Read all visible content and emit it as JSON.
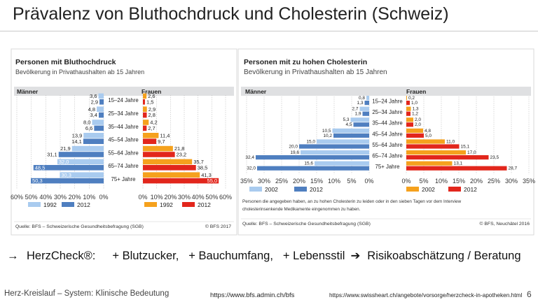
{
  "slide": {
    "title": "Prävalenz von Bluthochdruck und Cholesterin (Schweiz)",
    "page_number": "6"
  },
  "summary": {
    "arrow1": "→",
    "brand": "HerzCheck®:",
    "items": [
      "+ Blutzucker,",
      "+ Bauchumfang,",
      "+ Lebensstil"
    ],
    "arrow2": "➔",
    "result": "Risikoabschätzung / Beratung"
  },
  "footer": {
    "left": "Herz-Kreislauf – System:  Klinische Bedeutung",
    "source_url_1": "https://www.bfs.admin.ch/bfs",
    "source_url_2": "https://www.swissheart.ch/angebote/vorsorge/herzcheck-in-apotheken.html"
  },
  "colors": {
    "maenner_light": "#a9cbef",
    "maenner_dark": "#4f7fc0",
    "frauen_light": "#f5a11d",
    "frauen_dark": "#e2261c",
    "header_band": "#dfe0e2",
    "grid": "#bfbfbf"
  },
  "chart_data": [
    {
      "type": "bar",
      "orientation": "horizontal",
      "title": "Personen mit Bluthochdruck",
      "subtitle": "Bevölkerung in Privathaushalten ab 15 Jahren",
      "panels": [
        "Männer",
        "Frauen"
      ],
      "categories": [
        "15–24 Jahre",
        "25–34 Jahre",
        "35–44 Jahre",
        "45–54 Jahre",
        "55–64 Jahre",
        "65–74 Jahre",
        "75+ Jahre"
      ],
      "series": [
        {
          "panel": "Männer",
          "name": "1992",
          "values": [
            3.6,
            4.8,
            8.0,
            13.9,
            21.9,
            32.0,
            30.3
          ]
        },
        {
          "panel": "Männer",
          "name": "2012",
          "values": [
            2.9,
            3.4,
            6.6,
            14.1,
            31.1,
            48.5,
            50.3
          ]
        },
        {
          "panel": "Frauen",
          "name": "1992",
          "values": [
            2.6,
            2.9,
            4.2,
            11.4,
            21.8,
            35.7,
            41.3
          ]
        },
        {
          "panel": "Frauen",
          "name": "2012",
          "values": [
            1.5,
            2.8,
            2.7,
            9.7,
            23.2,
            38.5,
            55.0
          ]
        }
      ],
      "value_labels": {
        "Männer_1992": [
          "3,6",
          "4,8",
          "8,0",
          "13,9",
          "21,9",
          "32,0",
          "30,3"
        ],
        "Männer_2012": [
          "2,9",
          "3,4",
          "6,6",
          "14,1",
          "31,1",
          "48,5",
          "50,3"
        ],
        "Frauen_1992": [
          "2,6",
          "2,9",
          "4,2",
          "11,4",
          "21,8",
          "35,7",
          "41,3"
        ],
        "Frauen_2012": [
          "1,5",
          "2,8",
          "2,7",
          "9,7",
          "23,2",
          "38,5",
          "55,0"
        ]
      },
      "xlim": [
        0,
        60
      ],
      "x_ticks_left": [
        "60%",
        "50%",
        "40%",
        "30%",
        "20%",
        "10%",
        "0%"
      ],
      "x_ticks_right": [
        "0%",
        "10%",
        "20%",
        "30%",
        "40%",
        "50%",
        "60%"
      ],
      "legend": [
        "1992",
        "2012"
      ],
      "source": "Quelle: BFS – Schweizerische Gesundheitsbefragung (SGB)",
      "credit": "© BFS 2017"
    },
    {
      "type": "bar",
      "orientation": "horizontal",
      "title": "Personen mit zu hohen Cholesterin",
      "subtitle": "Bevölkerung in Privathaushalten ab 15 Jahren",
      "panels": [
        "Männer",
        "Frauen"
      ],
      "categories": [
        "15–24 Jahre",
        "25–34 Jahre",
        "35–44 Jahre",
        "45–54 Jahre",
        "55–64 Jahre",
        "65–74 Jahre",
        "75+ Jahre"
      ],
      "series": [
        {
          "panel": "Männer",
          "name": "2002",
          "values": [
            0.8,
            2.7,
            5.3,
            10.5,
            15.0,
            19.6,
            15.6
          ]
        },
        {
          "panel": "Männer",
          "name": "2012",
          "values": [
            1.3,
            1.9,
            4.5,
            10.2,
            20.0,
            32.4,
            32.0
          ]
        },
        {
          "panel": "Frauen",
          "name": "2002",
          "values": [
            0.2,
            1.3,
            2.0,
            4.8,
            11.0,
            17.0,
            13.1
          ]
        },
        {
          "panel": "Frauen",
          "name": "2012",
          "values": [
            1.0,
            1.2,
            2.0,
            5.0,
            15.1,
            23.5,
            28.7
          ]
        }
      ],
      "value_labels": {
        "Männer_2002": [
          "0,8",
          "2,7",
          "5,3",
          "10,5",
          "15,0",
          "19,6",
          "15,6"
        ],
        "Männer_2012": [
          "1,3",
          "1,9",
          "4,5",
          "10,2",
          "20,0",
          "32,4",
          "32,0"
        ],
        "Frauen_2002": [
          "0,2",
          "1,3",
          "2,0",
          "4,8",
          "11,0",
          "17,0",
          "13,1"
        ],
        "Frauen_2012": [
          "1,0",
          "1,2",
          "2,0",
          "5,0",
          "15,1",
          "23,5",
          "28,7"
        ]
      },
      "xlim": [
        0,
        35
      ],
      "x_ticks_left": [
        "35%",
        "30%",
        "25%",
        "20%",
        "15%",
        "10%",
        "5%",
        "0%"
      ],
      "x_ticks_right": [
        "0%",
        "5%",
        "10%",
        "15%",
        "20%",
        "25%",
        "30%",
        "35%"
      ],
      "legend": [
        "2002",
        "2012"
      ],
      "note": "Personen die angegeben haben, an zu hohen Cholesterin zu leiden oder in den sieben Tagen vor dem Interview cholesterinsenkende Medikamente eingenommen zu haben.",
      "source": "Quelle: BFS – Schweizerische Gesundheitsbefragung (SGB)",
      "credit": "© BFS, Neuchâtel 2016"
    }
  ]
}
